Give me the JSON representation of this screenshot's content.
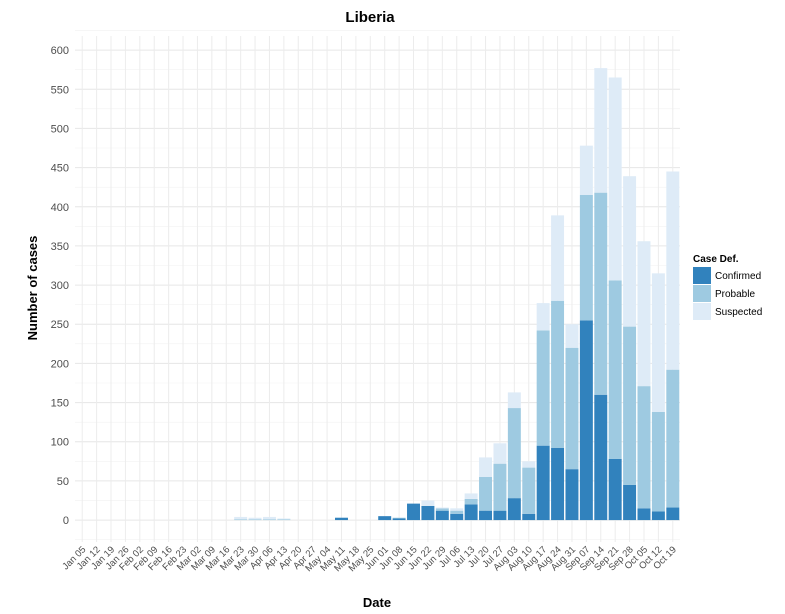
{
  "chart_data": {
    "type": "bar",
    "stacked": true,
    "title": "Liberia",
    "xlabel": "Date",
    "ylabel": "Number of cases",
    "ylim": [
      -28,
      618
    ],
    "yticks": [
      0,
      50,
      100,
      150,
      200,
      250,
      300,
      350,
      400,
      450,
      500,
      550,
      600
    ],
    "grid": true,
    "legend": {
      "title": "Case Def.",
      "placement": "right"
    },
    "categories": [
      "Jan 05",
      "Jan 12",
      "Jan 19",
      "Jan 26",
      "Feb 02",
      "Feb 09",
      "Feb 16",
      "Feb 23",
      "Mar 02",
      "Mar 09",
      "Mar 16",
      "Mar 23",
      "Mar 30",
      "Apr 06",
      "Apr 13",
      "Apr 20",
      "Apr 27",
      "May 04",
      "May 11",
      "May 18",
      "May 25",
      "Jun 01",
      "Jun 08",
      "Jun 15",
      "Jun 22",
      "Jun 29",
      "Jul 06",
      "Jul 13",
      "Jul 20",
      "Jul 27",
      "Aug 03",
      "Aug 10",
      "Aug 17",
      "Aug 24",
      "Aug 31",
      "Sep 07",
      "Sep 14",
      "Sep 21",
      "Sep 28",
      "Oct 05",
      "Oct 12",
      "Oct 19"
    ],
    "series": [
      {
        "name": "Confirmed",
        "color": "#3182bd",
        "values": [
          0,
          0,
          0,
          0,
          0,
          0,
          0,
          0,
          0,
          0,
          0,
          0,
          0,
          0,
          0,
          0,
          0,
          0,
          3,
          0,
          0,
          5,
          2,
          21,
          18,
          12,
          8,
          20,
          12,
          12,
          28,
          8,
          95,
          92,
          65,
          255,
          160,
          78,
          45,
          15,
          11,
          16
        ]
      },
      {
        "name": "Probable",
        "color": "#9ecae1",
        "values": [
          0,
          0,
          0,
          0,
          0,
          0,
          0,
          0,
          0,
          0,
          0,
          1,
          1,
          1,
          1,
          0,
          0,
          0,
          0,
          0,
          0,
          0,
          1,
          0,
          0,
          3,
          4,
          7,
          43,
          60,
          115,
          59,
          147,
          188,
          155,
          160,
          258,
          228,
          202,
          156,
          127,
          176
        ]
      },
      {
        "name": "Suspected",
        "color": "#deebf7",
        "values": [
          0,
          0,
          0,
          0,
          0,
          0,
          0,
          0,
          0,
          0,
          0,
          3,
          2,
          3,
          1,
          0,
          0,
          0,
          0,
          0,
          0,
          0,
          0,
          0,
          7,
          1,
          3,
          7,
          25,
          26,
          20,
          8,
          35,
          109,
          30,
          63,
          159,
          259,
          192,
          185,
          177,
          253
        ]
      }
    ]
  }
}
